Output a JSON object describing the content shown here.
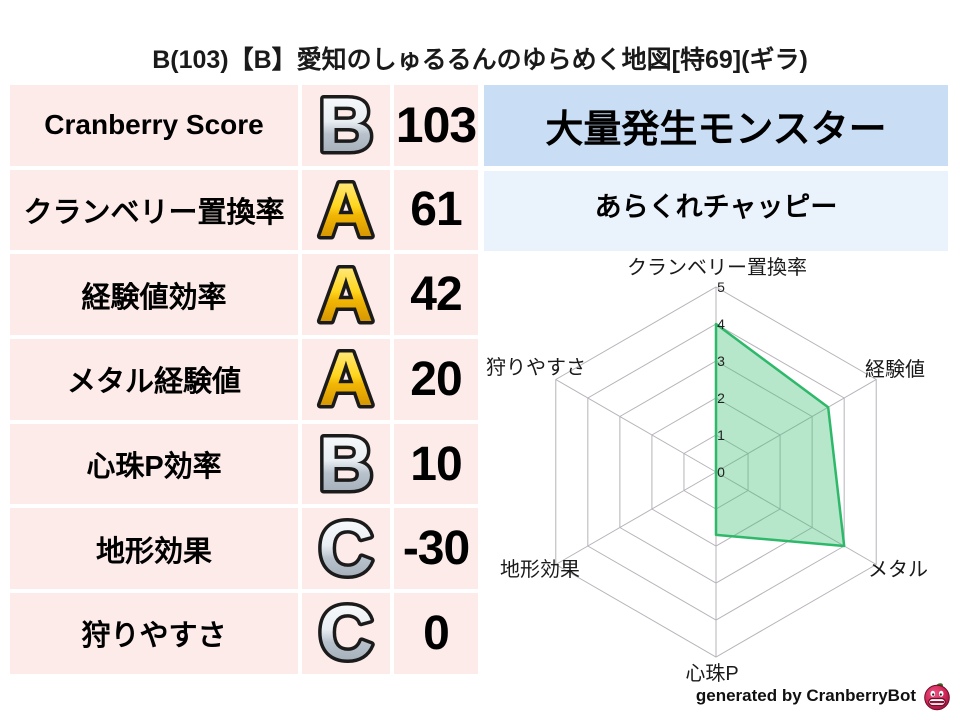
{
  "title": "B(103)【B】愛知のしゅるるんのゆらめく地図[特69](ギラ)",
  "stats_table": {
    "rows": [
      {
        "label": "Cranberry Score",
        "grade": "B",
        "tier": "silver",
        "value": "103"
      },
      {
        "label": "クランベリー置換率",
        "grade": "A",
        "tier": "gold",
        "value": "61"
      },
      {
        "label": "経験値効率",
        "grade": "A",
        "tier": "gold",
        "value": "42"
      },
      {
        "label": "メタル経験値",
        "grade": "A",
        "tier": "gold",
        "value": "20"
      },
      {
        "label": "心珠P効率",
        "grade": "B",
        "tier": "silver",
        "value": "10"
      },
      {
        "label": "地形効果",
        "grade": "C",
        "tier": "silver",
        "value": "-30"
      },
      {
        "label": "狩りやすさ",
        "grade": "C",
        "tier": "silver",
        "value": "0"
      }
    ]
  },
  "monster_panel": {
    "header": "大量発生モンスター",
    "monster_name": "あらくれチャッピー"
  },
  "chart_data": {
    "type": "radar",
    "title": "",
    "categories": [
      "クランベリー置換率",
      "経験値",
      "メタル",
      "心珠P",
      "地形効果",
      "狩りやすさ"
    ],
    "series": [
      {
        "name": "map-stats",
        "values": [
          4,
          3.5,
          4,
          1.7,
          0,
          0
        ]
      }
    ],
    "ticks": [
      0,
      1,
      2,
      3,
      4,
      5
    ],
    "range": [
      0,
      5
    ],
    "grid": true,
    "legend": false,
    "fill_color": "rgba(62,191,115,0.38)",
    "stroke_color": "#2eb86a"
  },
  "footer": {
    "credit": "generated by CranberryBot",
    "logo": "cranberrybot-mascot-icon"
  },
  "colors": {
    "score_row_bg": "#f9c7c7",
    "stat_row_bg": "#fcebe9",
    "monster_header_bg": "#c9def5",
    "monster_name_bg": "#eaf2fb",
    "grid_color": "#b7b3ba",
    "radar_fill": "rgba(62,191,115,0.38)",
    "radar_stroke": "#2eb86a",
    "gold": "#f2b705",
    "silver": "#c3ccd6"
  }
}
